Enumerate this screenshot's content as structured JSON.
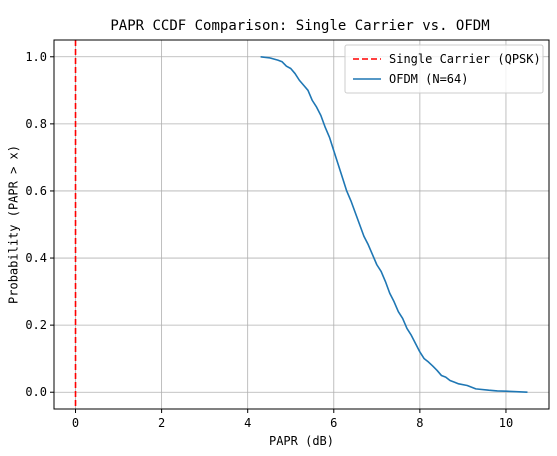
{
  "chart_data": {
    "type": "line",
    "title": "PAPR CCDF Comparison: Single Carrier vs. OFDM",
    "xlabel": "PAPR (dB)",
    "ylabel": "Probability (PAPR > x)",
    "xlim": [
      -0.5,
      11.0
    ],
    "ylim": [
      -0.05,
      1.05
    ],
    "xticks": [
      0,
      2,
      4,
      6,
      8,
      10
    ],
    "xtick_labels": [
      "0",
      "2",
      "4",
      "6",
      "8",
      "10"
    ],
    "yticks": [
      0.0,
      0.2,
      0.4,
      0.6,
      0.8,
      1.0
    ],
    "ytick_labels": [
      "0.0",
      "0.2",
      "0.4",
      "0.6",
      "0.8",
      "1.0"
    ],
    "grid": true,
    "legend_position": "top-right",
    "series": [
      {
        "name": "Single Carrier (QPSK)",
        "color": "#ff0000",
        "style": "dashed",
        "x_constant": 0.0
      },
      {
        "name": "OFDM (N=64)",
        "color": "#1f77b4",
        "style": "solid",
        "points": [
          [
            4.3,
            1.0
          ],
          [
            4.5,
            0.997
          ],
          [
            4.7,
            0.99
          ],
          [
            4.8,
            0.985
          ],
          [
            4.9,
            0.972
          ],
          [
            5.0,
            0.965
          ],
          [
            5.1,
            0.95
          ],
          [
            5.2,
            0.93
          ],
          [
            5.3,
            0.915
          ],
          [
            5.4,
            0.9
          ],
          [
            5.5,
            0.87
          ],
          [
            5.6,
            0.85
          ],
          [
            5.7,
            0.825
          ],
          [
            5.8,
            0.79
          ],
          [
            5.9,
            0.76
          ],
          [
            6.0,
            0.72
          ],
          [
            6.1,
            0.68
          ],
          [
            6.2,
            0.64
          ],
          [
            6.3,
            0.6
          ],
          [
            6.4,
            0.57
          ],
          [
            6.5,
            0.535
          ],
          [
            6.6,
            0.5
          ],
          [
            6.7,
            0.465
          ],
          [
            6.8,
            0.44
          ],
          [
            6.9,
            0.41
          ],
          [
            7.0,
            0.38
          ],
          [
            7.1,
            0.36
          ],
          [
            7.2,
            0.33
          ],
          [
            7.3,
            0.295
          ],
          [
            7.4,
            0.27
          ],
          [
            7.5,
            0.24
          ],
          [
            7.6,
            0.22
          ],
          [
            7.7,
            0.19
          ],
          [
            7.8,
            0.17
          ],
          [
            7.9,
            0.145
          ],
          [
            8.0,
            0.12
          ],
          [
            8.1,
            0.1
          ],
          [
            8.2,
            0.09
          ],
          [
            8.3,
            0.078
          ],
          [
            8.4,
            0.065
          ],
          [
            8.5,
            0.05
          ],
          [
            8.6,
            0.045
          ],
          [
            8.7,
            0.035
          ],
          [
            8.8,
            0.03
          ],
          [
            8.9,
            0.025
          ],
          [
            9.1,
            0.02
          ],
          [
            9.3,
            0.01
          ],
          [
            9.6,
            0.006
          ],
          [
            9.8,
            0.004
          ],
          [
            10.0,
            0.003
          ],
          [
            10.5,
            0.0
          ]
        ]
      }
    ]
  }
}
